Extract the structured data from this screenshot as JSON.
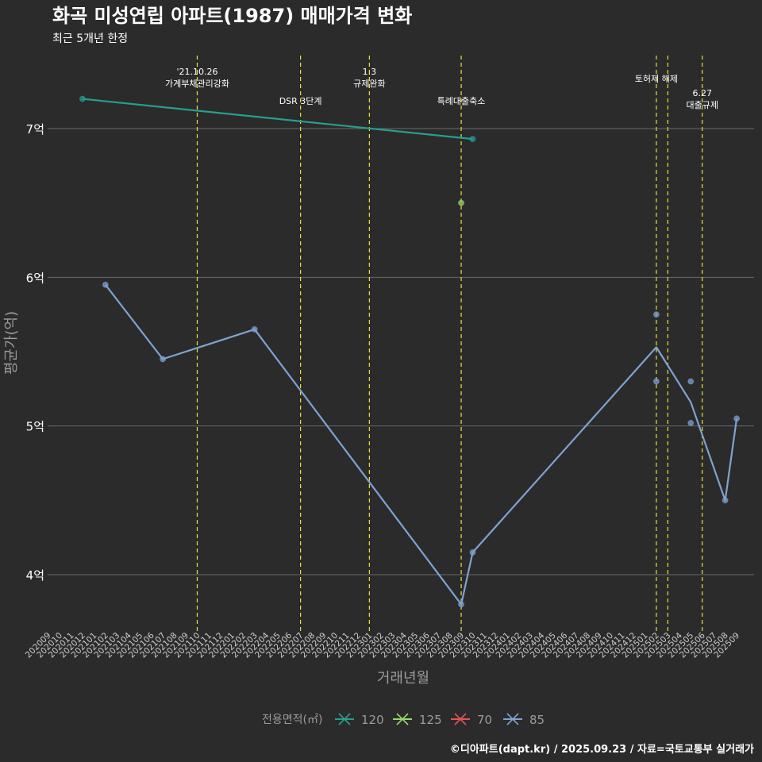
{
  "chart_data": {
    "type": "line",
    "title": "화곡 미성연립 아파트(1987) 매매가격 변화",
    "subtitle": "최근 5개년 한정",
    "xlabel": "거래년월",
    "ylabel": "평균가(억)",
    "caption": "©디아파트(dapt.kr) / 2025.09.23 / 자료=국토교통부 실거래가",
    "y_ticks": [
      {
        "value": 4,
        "label": "4억"
      },
      {
        "value": 5,
        "label": "5억"
      },
      {
        "value": 6,
        "label": "6억"
      },
      {
        "value": 7,
        "label": "7억"
      }
    ],
    "x_categories": [
      "202009",
      "202010",
      "202011",
      "202012",
      "202101",
      "202102",
      "202103",
      "202104",
      "202105",
      "202106",
      "202107",
      "202108",
      "202109",
      "202110",
      "202111",
      "202112",
      "202201",
      "202202",
      "202203",
      "202204",
      "202205",
      "202206",
      "202207",
      "202208",
      "202209",
      "202210",
      "202211",
      "202212",
      "202301",
      "202302",
      "202303",
      "202304",
      "202305",
      "202306",
      "202307",
      "202308",
      "202309",
      "202310",
      "202311",
      "202312",
      "202401",
      "202402",
      "202403",
      "202404",
      "202405",
      "202406",
      "202407",
      "202408",
      "202409",
      "202410",
      "202411",
      "202412",
      "202501",
      "202502",
      "202503",
      "202504",
      "202505",
      "202506",
      "202507",
      "202508",
      "202509"
    ],
    "legend": {
      "title": "전용면적(㎡)",
      "position": "bottom",
      "items": [
        {
          "label": "120",
          "color": "#2a9d8f"
        },
        {
          "label": "125",
          "color": "#9ad66a"
        },
        {
          "label": "70",
          "color": "#e05555"
        },
        {
          "label": "85",
          "color": "#7fa2d0"
        }
      ]
    },
    "series": [
      {
        "name": "120",
        "color": "#2a9d8f",
        "points": [
          {
            "x": "202012",
            "y": 7.2
          },
          {
            "x": "202310",
            "y": 6.93
          }
        ],
        "line": [
          {
            "x": "202012",
            "y": 7.2
          },
          {
            "x": "202310",
            "y": 6.93
          }
        ]
      },
      {
        "name": "125",
        "color": "#9ad66a",
        "points": [
          {
            "x": "202309",
            "y": 6.5
          }
        ],
        "line": []
      },
      {
        "name": "85",
        "color": "#7fa2d0",
        "points": [
          {
            "x": "202102",
            "y": 5.95
          },
          {
            "x": "202107",
            "y": 5.45
          },
          {
            "x": "202203",
            "y": 5.65
          },
          {
            "x": "202309",
            "y": 3.8
          },
          {
            "x": "202310",
            "y": 4.15
          },
          {
            "x": "202502",
            "y": 5.75
          },
          {
            "x": "202502",
            "y": 5.3
          },
          {
            "x": "202505",
            "y": 5.3
          },
          {
            "x": "202505",
            "y": 5.02
          },
          {
            "x": "202508",
            "y": 4.5
          },
          {
            "x": "202509",
            "y": 5.05
          }
        ],
        "line": [
          {
            "x": "202102",
            "y": 5.95
          },
          {
            "x": "202107",
            "y": 5.45
          },
          {
            "x": "202203",
            "y": 5.65
          },
          {
            "x": "202309",
            "y": 3.8
          },
          {
            "x": "202310",
            "y": 4.15
          },
          {
            "x": "202502",
            "y": 5.53
          },
          {
            "x": "202505",
            "y": 5.16
          },
          {
            "x": "202508",
            "y": 4.5
          },
          {
            "x": "202509",
            "y": 5.05
          }
        ]
      }
    ],
    "policy_lines": [
      {
        "x": "202110",
        "lines": [
          "'21.10.26",
          "가계부채관리강화"
        ],
        "level": "high"
      },
      {
        "x": "202207",
        "lines": [
          "DSR 3단계"
        ],
        "level": "low"
      },
      {
        "x": "202301",
        "lines": [
          "1.3",
          "규제완화"
        ],
        "level": "high"
      },
      {
        "x": "202309",
        "lines": [
          "특례대출축소"
        ],
        "level": "low"
      },
      {
        "x": "202502",
        "lines": [
          "토허제 해제"
        ],
        "level": "mid"
      },
      {
        "x": "202503",
        "lines": [],
        "level": "none"
      },
      {
        "x": "202506",
        "lines": [
          "6.27",
          "대출규제"
        ],
        "level": "lowmid"
      }
    ],
    "ylim": [
      3.65,
      7.5
    ],
    "grid": true
  },
  "colors": {
    "background": "#2b2b2b",
    "grid": "#6a6a6a",
    "policy_line": "#e8e23a",
    "text": "#ffffff",
    "muted": "#9a9a9a"
  }
}
